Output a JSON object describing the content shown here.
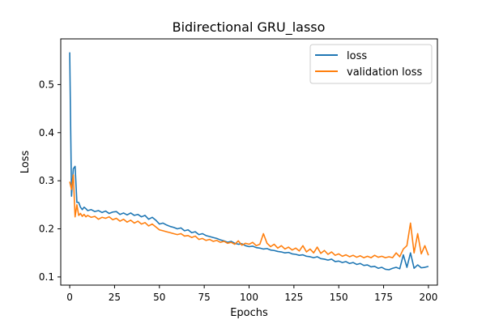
{
  "chart_data": {
    "type": "line",
    "title": "Bidirectional GRU_lasso",
    "xlabel": "Epochs",
    "ylabel": "Loss",
    "xlim": [
      -5,
      205
    ],
    "ylim": [
      0.083,
      0.595
    ],
    "xticks": [
      0,
      25,
      50,
      75,
      100,
      125,
      150,
      175,
      200
    ],
    "yticks": [
      0.1,
      0.2,
      0.3,
      0.4,
      0.5
    ],
    "ytick_labels": [
      "0.1",
      "0.2",
      "0.3",
      "0.4",
      "0.5"
    ],
    "grid": false,
    "legend_position": "top-right",
    "colors": {
      "loss": "#1f77b4",
      "validation loss": "#ff7f0e"
    },
    "series": [
      {
        "name": "loss",
        "color": "#1f77b4",
        "x": [
          0,
          1,
          2,
          3,
          4,
          5,
          6,
          7,
          8,
          9,
          10,
          12,
          14,
          16,
          18,
          20,
          22,
          24,
          26,
          28,
          30,
          32,
          34,
          36,
          38,
          40,
          42,
          44,
          46,
          48,
          50,
          52,
          54,
          56,
          58,
          60,
          62,
          64,
          66,
          68,
          70,
          72,
          74,
          76,
          78,
          80,
          82,
          84,
          86,
          88,
          90,
          92,
          94,
          96,
          98,
          100,
          102,
          104,
          106,
          108,
          110,
          112,
          114,
          116,
          118,
          120,
          122,
          124,
          126,
          128,
          130,
          132,
          134,
          136,
          138,
          140,
          142,
          144,
          146,
          148,
          150,
          152,
          154,
          156,
          158,
          160,
          162,
          164,
          166,
          168,
          170,
          172,
          174,
          176,
          178,
          180,
          182,
          184,
          186,
          188,
          190,
          192,
          194,
          196,
          198,
          200
        ],
        "y": [
          0.567,
          0.268,
          0.325,
          0.33,
          0.255,
          0.255,
          0.245,
          0.24,
          0.245,
          0.242,
          0.238,
          0.24,
          0.236,
          0.238,
          0.234,
          0.237,
          0.232,
          0.235,
          0.236,
          0.23,
          0.233,
          0.229,
          0.233,
          0.228,
          0.23,
          0.225,
          0.228,
          0.22,
          0.224,
          0.218,
          0.21,
          0.212,
          0.208,
          0.205,
          0.203,
          0.2,
          0.202,
          0.196,
          0.198,
          0.192,
          0.194,
          0.188,
          0.19,
          0.186,
          0.184,
          0.182,
          0.18,
          0.177,
          0.175,
          0.172,
          0.174,
          0.17,
          0.168,
          0.169,
          0.165,
          0.163,
          0.164,
          0.161,
          0.16,
          0.158,
          0.159,
          0.156,
          0.155,
          0.153,
          0.152,
          0.15,
          0.151,
          0.148,
          0.147,
          0.145,
          0.146,
          0.143,
          0.142,
          0.14,
          0.142,
          0.138,
          0.137,
          0.135,
          0.137,
          0.132,
          0.133,
          0.13,
          0.132,
          0.128,
          0.13,
          0.126,
          0.128,
          0.124,
          0.125,
          0.121,
          0.122,
          0.118,
          0.12,
          0.116,
          0.115,
          0.118,
          0.12,
          0.117,
          0.146,
          0.12,
          0.15,
          0.118,
          0.125,
          0.119,
          0.12,
          0.122
        ]
      },
      {
        "name": "validation loss",
        "color": "#ff7f0e",
        "x": [
          0,
          1,
          2,
          3,
          4,
          5,
          6,
          7,
          8,
          9,
          10,
          12,
          14,
          16,
          18,
          20,
          22,
          24,
          26,
          28,
          30,
          32,
          34,
          36,
          38,
          40,
          42,
          44,
          46,
          48,
          50,
          52,
          54,
          56,
          58,
          60,
          62,
          64,
          66,
          68,
          70,
          72,
          74,
          76,
          78,
          80,
          82,
          84,
          86,
          88,
          90,
          92,
          94,
          96,
          98,
          100,
          102,
          104,
          106,
          108,
          110,
          112,
          114,
          116,
          118,
          120,
          122,
          124,
          126,
          128,
          130,
          132,
          134,
          136,
          138,
          140,
          142,
          144,
          146,
          148,
          150,
          152,
          154,
          156,
          158,
          160,
          162,
          164,
          166,
          168,
          170,
          172,
          174,
          176,
          178,
          180,
          182,
          184,
          186,
          188,
          190,
          192,
          194,
          196,
          198,
          200
        ],
        "y": [
          0.298,
          0.282,
          0.312,
          0.225,
          0.25,
          0.228,
          0.232,
          0.226,
          0.23,
          0.225,
          0.228,
          0.224,
          0.226,
          0.22,
          0.224,
          0.222,
          0.225,
          0.219,
          0.222,
          0.216,
          0.22,
          0.214,
          0.218,
          0.212,
          0.216,
          0.21,
          0.213,
          0.206,
          0.21,
          0.204,
          0.198,
          0.196,
          0.194,
          0.192,
          0.19,
          0.188,
          0.19,
          0.185,
          0.186,
          0.182,
          0.185,
          0.178,
          0.18,
          0.176,
          0.178,
          0.174,
          0.176,
          0.172,
          0.174,
          0.17,
          0.172,
          0.168,
          0.175,
          0.166,
          0.17,
          0.168,
          0.172,
          0.165,
          0.168,
          0.19,
          0.17,
          0.163,
          0.168,
          0.16,
          0.165,
          0.158,
          0.162,
          0.156,
          0.16,
          0.154,
          0.165,
          0.152,
          0.158,
          0.15,
          0.162,
          0.149,
          0.155,
          0.147,
          0.152,
          0.145,
          0.148,
          0.143,
          0.146,
          0.142,
          0.145,
          0.141,
          0.144,
          0.14,
          0.143,
          0.14,
          0.145,
          0.141,
          0.143,
          0.14,
          0.142,
          0.14,
          0.15,
          0.142,
          0.158,
          0.165,
          0.212,
          0.15,
          0.19,
          0.148,
          0.165,
          0.145
        ]
      }
    ]
  }
}
